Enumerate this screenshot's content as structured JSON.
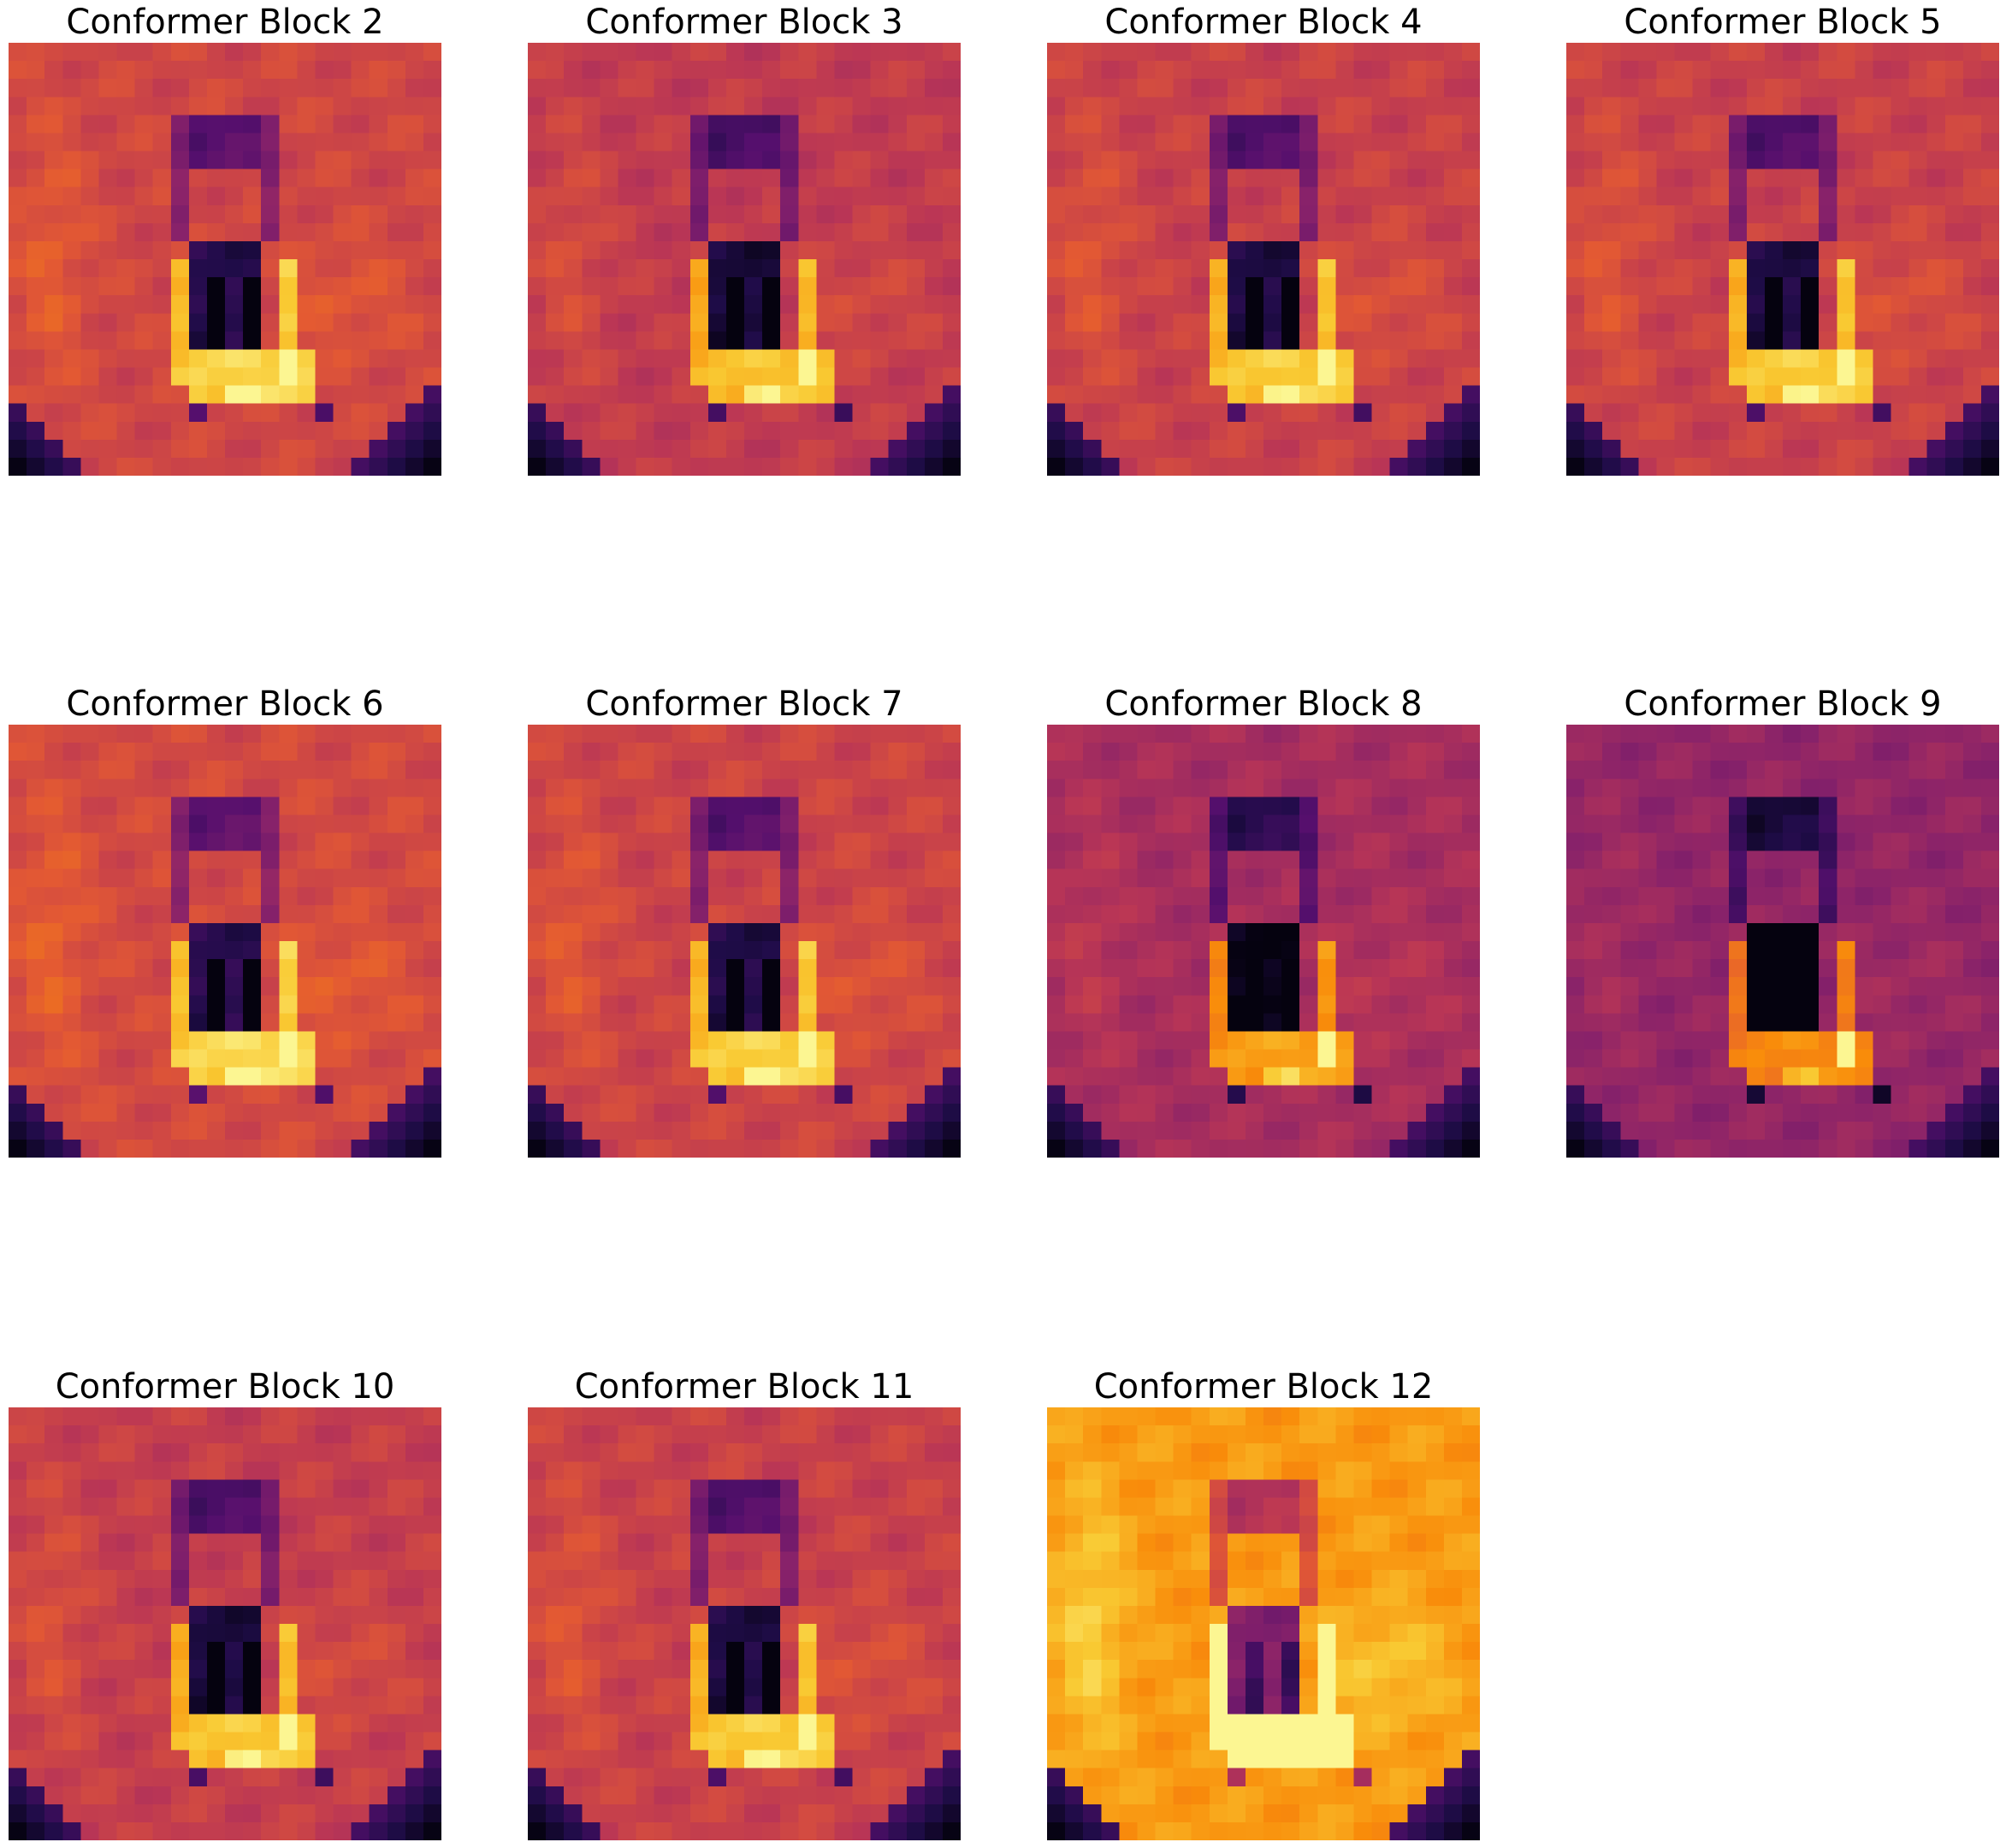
{
  "chart_data": [
    {
      "type": "heatmap",
      "title": "Conformer Block 2",
      "colormap": "inferno",
      "grid": [
        24,
        24
      ],
      "axes": "off",
      "global_warmth": 0.56,
      "background_tint": "red-orange"
    },
    {
      "type": "heatmap",
      "title": "Conformer Block 3",
      "colormap": "inferno",
      "grid": [
        24,
        24
      ],
      "axes": "off",
      "global_warmth": 0.52,
      "background_tint": "red-magenta"
    },
    {
      "type": "heatmap",
      "title": "Conformer Block 4",
      "colormap": "inferno",
      "grid": [
        24,
        24
      ],
      "axes": "off",
      "global_warmth": 0.54,
      "background_tint": "red-magenta"
    },
    {
      "type": "heatmap",
      "title": "Conformer Block 5",
      "colormap": "inferno",
      "grid": [
        24,
        24
      ],
      "axes": "off",
      "global_warmth": 0.54,
      "background_tint": "red-magenta"
    },
    {
      "type": "heatmap",
      "title": "Conformer Block 6",
      "colormap": "inferno",
      "grid": [
        24,
        24
      ],
      "axes": "off",
      "global_warmth": 0.57,
      "background_tint": "red-orange"
    },
    {
      "type": "heatmap",
      "title": "Conformer Block 7",
      "colormap": "inferno",
      "grid": [
        24,
        24
      ],
      "axes": "off",
      "global_warmth": 0.55,
      "background_tint": "red-orange"
    },
    {
      "type": "heatmap",
      "title": "Conformer Block 8",
      "colormap": "inferno",
      "grid": [
        24,
        24
      ],
      "axes": "off",
      "global_warmth": 0.45,
      "background_tint": "magenta"
    },
    {
      "type": "heatmap",
      "title": "Conformer Block 9",
      "colormap": "inferno",
      "grid": [
        24,
        24
      ],
      "axes": "off",
      "global_warmth": 0.4,
      "background_tint": "purple"
    },
    {
      "type": "heatmap",
      "title": "Conformer Block 10",
      "colormap": "inferno",
      "grid": [
        24,
        24
      ],
      "axes": "off",
      "global_warmth": 0.53,
      "background_tint": "red-magenta"
    },
    {
      "type": "heatmap",
      "title": "Conformer Block 11",
      "colormap": "inferno",
      "grid": [
        24,
        24
      ],
      "axes": "off",
      "global_warmth": 0.54,
      "background_tint": "red-magenta"
    },
    {
      "type": "heatmap",
      "title": "Conformer Block 12",
      "colormap": "inferno",
      "grid": [
        24,
        24
      ],
      "axes": "off",
      "global_warmth": 0.78,
      "background_tint": "orange-yellow"
    }
  ]
}
